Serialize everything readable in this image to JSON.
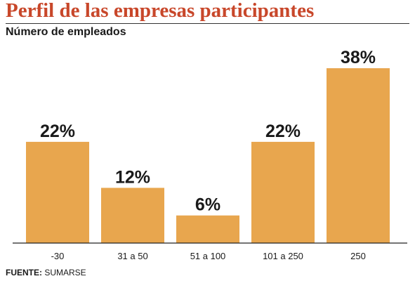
{
  "header": {
    "title": "Perfil de las empresas participantes",
    "subtitle": "Número de empleados"
  },
  "footer": {
    "source_label": "FUENTE:",
    "source_value": "SUMARSE"
  },
  "colors": {
    "title": "#c8472a",
    "bar": "#e8a64e",
    "axis": "#222222",
    "text": "#1a1a1a"
  },
  "chart_data": {
    "type": "bar",
    "title": "Perfil de las empresas participantes",
    "subtitle": "Número de empleados",
    "categories": [
      "-30",
      "31 a 50",
      "51 a 100",
      "101 a 250",
      "250"
    ],
    "values": [
      22,
      12,
      6,
      22,
      38
    ],
    "value_labels": [
      "22%",
      "12%",
      "6%",
      "22%",
      "38%"
    ],
    "unit": "%",
    "ylim": [
      0,
      38
    ],
    "grid": false,
    "legend": "none"
  }
}
